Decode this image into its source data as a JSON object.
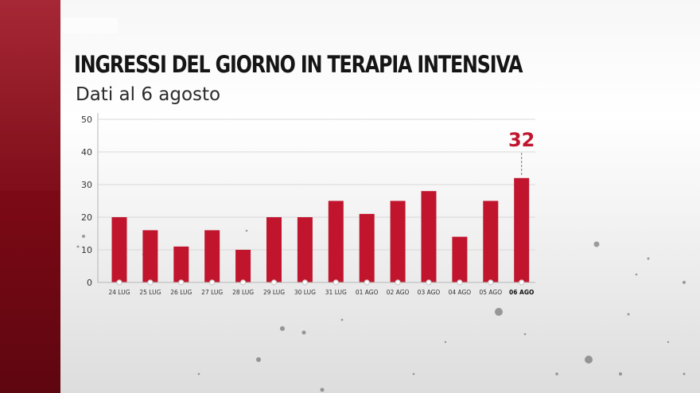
{
  "title": "INGRESSI DEL GIORNO IN TERAPIA INTENSIVA",
  "subtitle": "Dati al 6 agosto",
  "colors": {
    "bar": "#c0152d",
    "accent": "#c0152d",
    "band": "#8b0c1a",
    "grid": "#d8d8d8",
    "axis": "#b5b5b5"
  },
  "chart_data": {
    "type": "bar",
    "title": "INGRESSI DEL GIORNO IN TERAPIA INTENSIVA",
    "subtitle": "Dati al 6 agosto",
    "xlabel": "",
    "ylabel": "",
    "categories": [
      "24 LUG",
      "25 LUG",
      "26 LUG",
      "27 LUG",
      "28 LUG",
      "29 LUG",
      "30 LUG",
      "31 LUG",
      "01 AGO",
      "02 AGO",
      "03 AGO",
      "04 AGO",
      "05 AGO",
      "06 AGO"
    ],
    "values": [
      20,
      16,
      11,
      16,
      10,
      20,
      20,
      25,
      21,
      25,
      28,
      14,
      25,
      32
    ],
    "ylim": [
      0,
      50
    ],
    "yticks": [
      0,
      10,
      20,
      30,
      40,
      50
    ],
    "grid": true,
    "highlight": {
      "category": "06 AGO",
      "label": "32"
    }
  }
}
